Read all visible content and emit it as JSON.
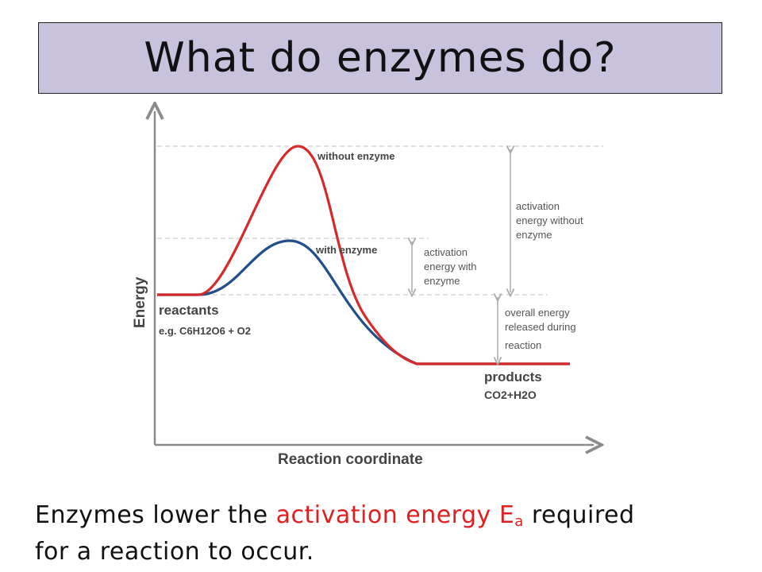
{
  "header": {
    "title": "What do enzymes do?"
  },
  "diagram": {
    "y_axis_label": "Energy",
    "x_axis_label": "Reaction coordinate",
    "curve_labels": {
      "without_enzyme": "without enzyme",
      "with_enzyme": "with enzyme"
    },
    "reactants": {
      "label": "reactants",
      "formula": "e.g. C6H12O6 + O2"
    },
    "products": {
      "label": "products",
      "formula": "CO2+H2O"
    },
    "annotations": {
      "ea_with": [
        "activation",
        "energy with",
        "enzyme"
      ],
      "ea_without": [
        "activation",
        "energy without",
        "enzyme"
      ],
      "overall": [
        "overall energy",
        "released during",
        "reaction"
      ]
    },
    "colors": {
      "without_enzyme": "#d62a2a",
      "with_enzyme": "#1f4e8c",
      "axis": "#8a8a8a",
      "guides": "#c8c8c8"
    }
  },
  "caption": {
    "prefix": "Enzymes lower the ",
    "highlight": "activation energy E",
    "subscript": "a",
    "suffix": " required",
    "line2": "for a reaction to occur."
  }
}
